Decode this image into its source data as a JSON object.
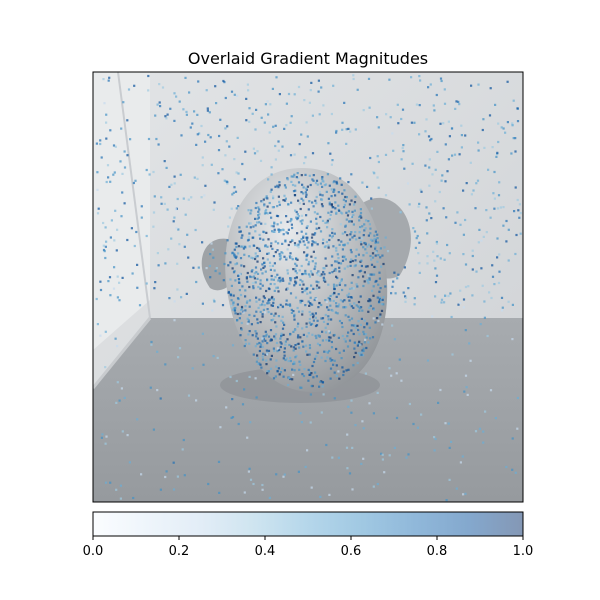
{
  "chart_data": {
    "type": "heatmap",
    "title": "Overlaid Gradient Magnitudes",
    "xlabel": "",
    "ylabel": "",
    "axes_ticks_visible": false,
    "grid": false,
    "background": "grayscale photograph of a rounded object (stuffed toy) sitting on a textured floor in a bright corner",
    "overlay": {
      "colormap": "Blues",
      "alpha": 0.5,
      "dense_regions": [
        "object body",
        "upper wall area"
      ]
    },
    "colorbar": {
      "orientation": "horizontal",
      "location": "bottom",
      "range": [
        0.0,
        1.0
      ],
      "ticks": [
        0.0,
        0.2,
        0.4,
        0.6,
        0.8,
        1.0
      ],
      "tick_labels": [
        "0.0",
        "0.2",
        "0.4",
        "0.6",
        "0.8",
        "1.0"
      ],
      "colors": [
        "#f7fbff",
        "#deebf7",
        "#c6dbef",
        "#9ecae1",
        "#6baed6",
        "#4292c6",
        "#2171b5",
        "#08519c",
        "#08306b"
      ]
    }
  }
}
